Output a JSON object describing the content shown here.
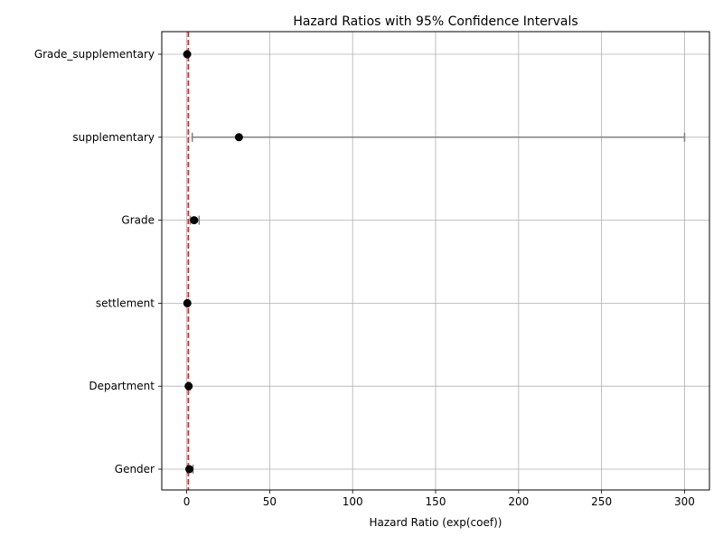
{
  "chart_data": {
    "type": "scatter",
    "title": "Hazard Ratios with 95% Confidence Intervals",
    "xlabel": "Hazard Ratio (exp(coef))",
    "ylabel": "",
    "xlim": [
      -15,
      315
    ],
    "x_ticks": [
      0,
      50,
      100,
      150,
      200,
      250,
      300
    ],
    "grid": true,
    "reference_line": {
      "x": 1,
      "style": "dashed",
      "color": "#d62728"
    },
    "point_color": "#000000",
    "ci_color": "#808080",
    "categories": [
      "Gender",
      "Department",
      "settlement",
      "Grade",
      "supplementary",
      "Grade_supplementary"
    ],
    "hazard_ratio": [
      1.6,
      1.2,
      0.4,
      4.5,
      31.5,
      0.3
    ],
    "ci_lower": [
      0.6,
      0.6,
      0.1,
      2.2,
      3.4,
      0.1
    ],
    "ci_upper": [
      3.8,
      2.0,
      1.2,
      7.5,
      300.0,
      0.8
    ]
  }
}
